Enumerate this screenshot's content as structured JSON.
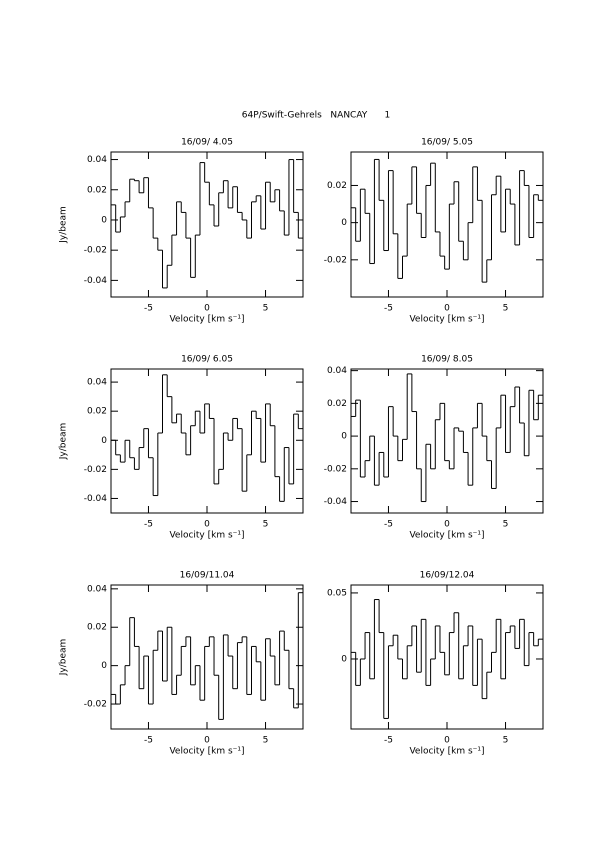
{
  "title": "64P/Swift-Gehrels   NANCAY      1",
  "chart_data": [
    {
      "type": "step",
      "title": "16/09/ 4.05",
      "xlabel": "Velocity [km s⁻¹]",
      "ylabel": "Jy/beam",
      "x": [
        -8,
        -7.6,
        -7.2,
        -6.8,
        -6.4,
        -6,
        -5.6,
        -5.2,
        -4.8,
        -4.4,
        -4,
        -3.6,
        -3.2,
        -2.8,
        -2.4,
        -2,
        -1.6,
        -1.2,
        -0.8,
        -0.4,
        0,
        0.4,
        0.8,
        1.2,
        1.6,
        2,
        2.4,
        2.8,
        3.2,
        3.6,
        4,
        4.4,
        4.8,
        5.2,
        5.6,
        6,
        6.4,
        6.8,
        7.2,
        7.6,
        8
      ],
      "values": [
        0.01,
        -0.008,
        0.002,
        0.012,
        0.027,
        0.026,
        0.018,
        0.028,
        0.008,
        -0.012,
        -0.02,
        -0.045,
        -0.03,
        -0.01,
        0.012,
        0.005,
        -0.012,
        -0.038,
        -0.01,
        0.038,
        0.025,
        0.01,
        -0.004,
        0.018,
        0.026,
        0.008,
        0.022,
        0.005,
        0.0,
        -0.012,
        0.012,
        0.016,
        -0.006,
        0.025,
        0.012,
        0.02,
        0.006,
        -0.01,
        0.04,
        0.005,
        -0.012
      ],
      "xlim": [
        -8.2,
        8.2
      ],
      "xticks": [
        -5,
        0,
        5
      ],
      "ylim": [
        -0.051,
        0.045
      ],
      "yticks": [
        -0.04,
        -0.02,
        0,
        0.02,
        0.04
      ],
      "color": "#000000"
    },
    {
      "type": "step",
      "title": "16/09/ 5.05",
      "xlabel": "Velocity [km s⁻¹]",
      "x": [
        -8,
        -7.6,
        -7.2,
        -6.8,
        -6.4,
        -6,
        -5.6,
        -5.2,
        -4.8,
        -4.4,
        -4,
        -3.6,
        -3.2,
        -2.8,
        -2.4,
        -2,
        -1.6,
        -1.2,
        -0.8,
        -0.4,
        0,
        0.4,
        0.8,
        1.2,
        1.6,
        2,
        2.4,
        2.8,
        3.2,
        3.6,
        4,
        4.4,
        4.8,
        5.2,
        5.6,
        6,
        6.4,
        6.8,
        7.2,
        7.6,
        8
      ],
      "values": [
        0.008,
        -0.01,
        0.018,
        0.005,
        -0.022,
        0.034,
        0.012,
        -0.015,
        0.028,
        -0.006,
        -0.03,
        -0.018,
        0.01,
        0.03,
        0.005,
        -0.008,
        0.02,
        0.032,
        -0.005,
        -0.018,
        -0.025,
        0.01,
        0.022,
        -0.01,
        -0.02,
        0.0,
        0.03,
        0.012,
        -0.032,
        -0.02,
        0.015,
        0.025,
        -0.005,
        0.018,
        0.01,
        -0.012,
        0.028,
        0.02,
        -0.008,
        0.015,
        0.012
      ],
      "xlim": [
        -8.2,
        8.2
      ],
      "xticks": [
        -5,
        0,
        5
      ],
      "ylim": [
        -0.04,
        0.038
      ],
      "yticks": [
        -0.02,
        0,
        0.02
      ],
      "color": "#000000"
    },
    {
      "type": "step",
      "title": "16/09/ 6.05",
      "xlabel": "Velocity [km s⁻¹]",
      "ylabel": "Jy/beam",
      "x": [
        -8,
        -7.6,
        -7.2,
        -6.8,
        -6.4,
        -6,
        -5.6,
        -5.2,
        -4.8,
        -4.4,
        -4,
        -3.6,
        -3.2,
        -2.8,
        -2.4,
        -2,
        -1.6,
        -1.2,
        -0.8,
        -0.4,
        0,
        0.4,
        0.8,
        1.2,
        1.6,
        2,
        2.4,
        2.8,
        3.2,
        3.6,
        4,
        4.4,
        4.8,
        5.2,
        5.6,
        6,
        6.4,
        6.8,
        7.2,
        7.6,
        8
      ],
      "values": [
        0.0,
        -0.01,
        -0.015,
        0.0,
        -0.012,
        -0.02,
        -0.005,
        0.008,
        -0.012,
        -0.038,
        0.005,
        0.045,
        0.03,
        0.012,
        0.018,
        0.005,
        -0.01,
        0.01,
        0.02,
        0.005,
        0.025,
        0.015,
        -0.03,
        -0.02,
        0.005,
        0.0,
        0.015,
        0.008,
        -0.035,
        -0.01,
        0.02,
        0.015,
        -0.015,
        0.025,
        0.01,
        -0.025,
        -0.042,
        -0.005,
        -0.03,
        0.018,
        0.008
      ],
      "xlim": [
        -8.2,
        8.2
      ],
      "xticks": [
        -5,
        0,
        5
      ],
      "ylim": [
        -0.05,
        0.049
      ],
      "yticks": [
        -0.04,
        -0.02,
        0,
        0.02,
        0.04
      ],
      "color": "#000000"
    },
    {
      "type": "step",
      "title": "16/09/ 8.05",
      "xlabel": "Velocity [km s⁻¹]",
      "x": [
        -8,
        -7.6,
        -7.2,
        -6.8,
        -6.4,
        -6,
        -5.6,
        -5.2,
        -4.8,
        -4.4,
        -4,
        -3.6,
        -3.2,
        -2.8,
        -2.4,
        -2,
        -1.6,
        -1.2,
        -0.8,
        -0.4,
        0,
        0.4,
        0.8,
        1.2,
        1.6,
        2,
        2.4,
        2.8,
        3.2,
        3.6,
        4,
        4.4,
        4.8,
        5.2,
        5.6,
        6,
        6.4,
        6.8,
        7.2,
        7.6,
        8
      ],
      "values": [
        0.012,
        0.022,
        -0.025,
        -0.015,
        0.0,
        -0.03,
        -0.01,
        -0.025,
        0.018,
        0.0,
        -0.015,
        -0.002,
        0.038,
        0.015,
        -0.02,
        -0.04,
        -0.005,
        -0.02,
        0.01,
        0.02,
        -0.015,
        -0.02,
        0.005,
        0.003,
        -0.01,
        -0.03,
        0.005,
        0.02,
        0.0,
        -0.015,
        -0.032,
        0.005,
        0.025,
        -0.01,
        0.018,
        0.03,
        0.008,
        -0.012,
        0.028,
        0.01,
        0.025
      ],
      "xlim": [
        -8.2,
        8.2
      ],
      "xticks": [
        -5,
        0,
        5
      ],
      "ylim": [
        -0.047,
        0.041
      ],
      "yticks": [
        -0.04,
        -0.02,
        0,
        0.02,
        0.04
      ],
      "color": "#000000"
    },
    {
      "type": "step",
      "title": "16/09/11.04",
      "xlabel": "Velocity [km s⁻¹]",
      "ylabel": "Jy/beam",
      "x": [
        -8,
        -7.6,
        -7.2,
        -6.8,
        -6.4,
        -6,
        -5.6,
        -5.2,
        -4.8,
        -4.4,
        -4,
        -3.6,
        -3.2,
        -2.8,
        -2.4,
        -2,
        -1.6,
        -1.2,
        -0.8,
        -0.4,
        0,
        0.4,
        0.8,
        1.2,
        1.6,
        2,
        2.4,
        2.8,
        3.2,
        3.6,
        4,
        4.4,
        4.8,
        5.2,
        5.6,
        6,
        6.4,
        6.8,
        7.2,
        7.6,
        8
      ],
      "values": [
        -0.015,
        -0.02,
        -0.01,
        0.0,
        0.025,
        0.01,
        -0.012,
        0.005,
        -0.02,
        0.008,
        0.018,
        -0.008,
        0.02,
        -0.015,
        -0.005,
        0.01,
        0.015,
        -0.01,
        0.0,
        -0.018,
        0.01,
        0.015,
        -0.005,
        -0.028,
        0.016,
        0.005,
        -0.012,
        0.012,
        0.015,
        -0.015,
        0.01,
        0.002,
        -0.018,
        0.014,
        0.005,
        -0.01,
        0.018,
        0.008,
        -0.012,
        -0.022,
        0.038
      ],
      "xlim": [
        -8.2,
        8.2
      ],
      "xticks": [
        -5,
        0,
        5
      ],
      "ylim": [
        -0.033,
        0.042
      ],
      "yticks": [
        -0.02,
        0,
        0.02,
        0.04
      ],
      "color": "#000000"
    },
    {
      "type": "step",
      "title": "16/09/12.04",
      "xlabel": "Velocity [km s⁻¹]",
      "x": [
        -8,
        -7.6,
        -7.2,
        -6.8,
        -6.4,
        -6,
        -5.6,
        -5.2,
        -4.8,
        -4.4,
        -4,
        -3.6,
        -3.2,
        -2.8,
        -2.4,
        -2,
        -1.6,
        -1.2,
        -0.8,
        -0.4,
        0,
        0.4,
        0.8,
        1.2,
        1.6,
        2,
        2.4,
        2.8,
        3.2,
        3.6,
        4,
        4.4,
        4.8,
        5.2,
        5.6,
        6,
        6.4,
        6.8,
        7.2,
        7.6,
        8
      ],
      "values": [
        0.005,
        -0.02,
        0.0,
        0.02,
        -0.015,
        0.045,
        0.02,
        -0.045,
        0.01,
        0.018,
        0.0,
        -0.015,
        0.01,
        0.025,
        -0.01,
        0.03,
        -0.02,
        0.0,
        0.025,
        0.005,
        -0.012,
        0.02,
        0.035,
        -0.015,
        0.01,
        0.025,
        -0.02,
        0.015,
        -0.03,
        -0.01,
        0.005,
        0.03,
        -0.015,
        0.02,
        0.025,
        0.008,
        0.03,
        -0.005,
        0.02,
        0.01,
        0.015
      ],
      "xlim": [
        -8.2,
        8.2
      ],
      "xticks": [
        -5,
        0,
        5
      ],
      "ylim": [
        -0.053,
        0.056
      ],
      "yticks": [
        0,
        0.05
      ],
      "color": "#000000"
    }
  ]
}
